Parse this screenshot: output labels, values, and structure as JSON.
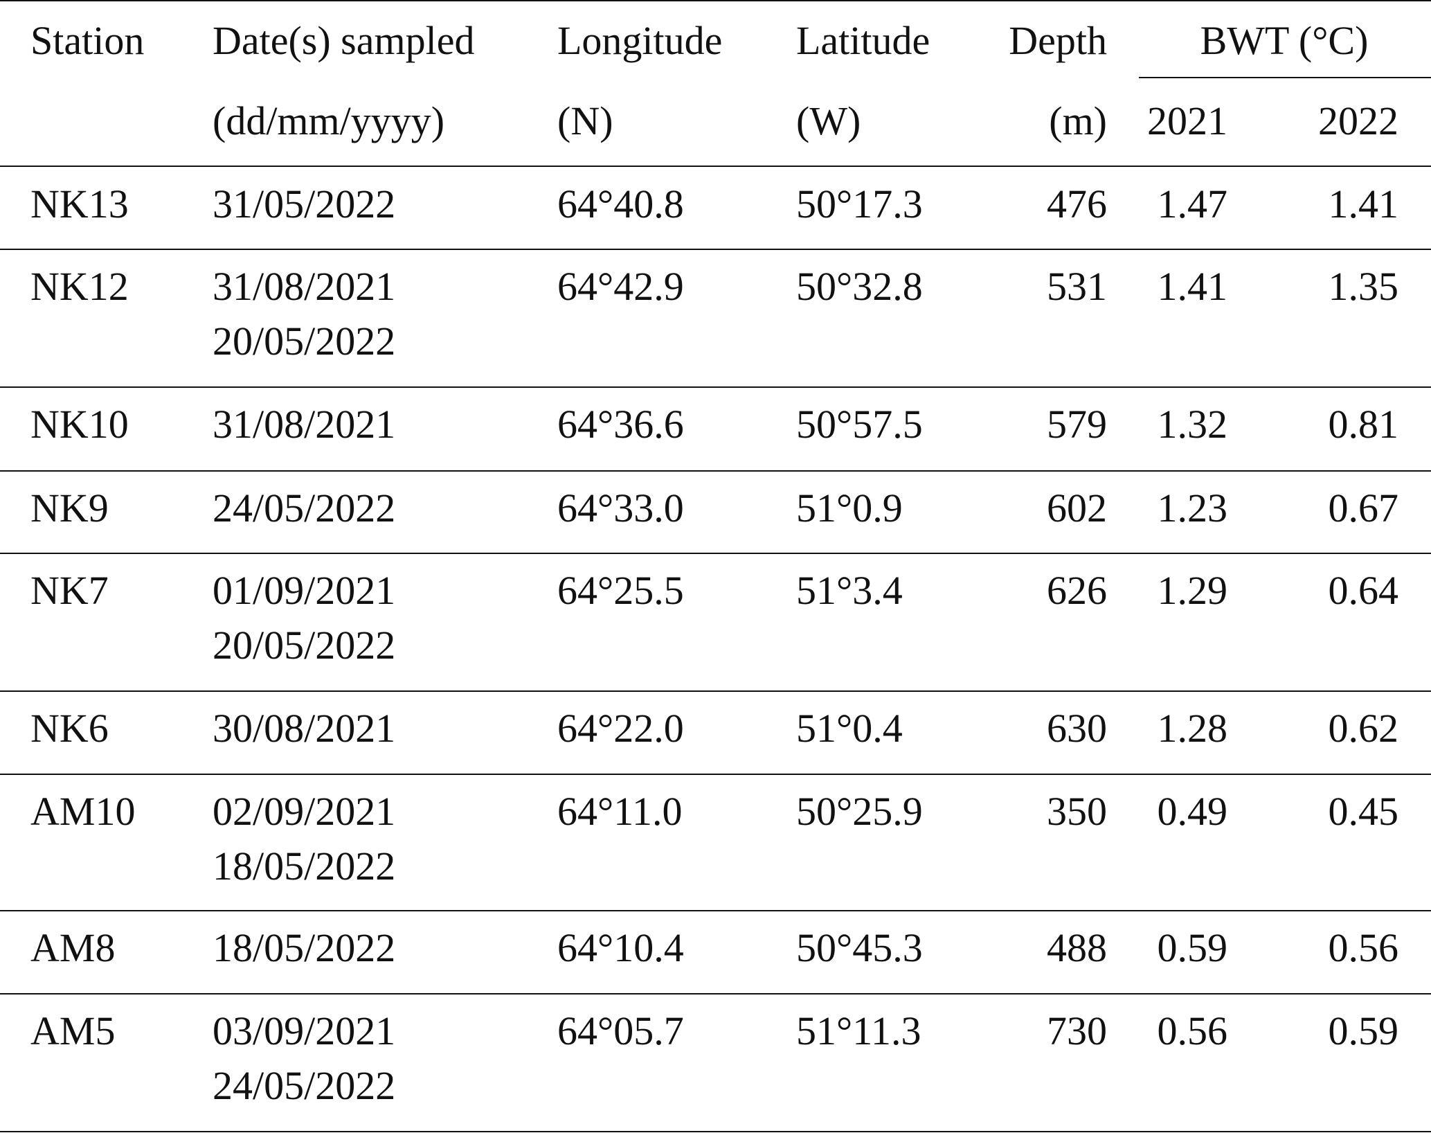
{
  "table": {
    "header": [
      [
        "Station",
        "Date(s) sampled",
        "Longitude",
        "Latitude",
        "Depth",
        "BWT (°C)"
      ],
      [
        "(dd/mm/yyyy)",
        "(N)",
        "(W)",
        "(m)",
        "2021",
        "2022"
      ]
    ],
    "rows": [
      [
        "NK13",
        [
          "31/05/2022"
        ],
        "64°40.8",
        "50°17.3",
        "476",
        "1.47",
        "1.41"
      ],
      [
        "NK12",
        [
          "31/08/2021",
          "20/05/2022"
        ],
        "64°42.9",
        "50°32.8",
        "531",
        "1.41",
        "1.35"
      ],
      [
        "NK10",
        [
          "31/08/2021"
        ],
        "64°36.6",
        "50°57.5",
        "579",
        "1.32",
        "0.81"
      ],
      [
        "NK9",
        [
          "24/05/2022"
        ],
        "64°33.0",
        "51°0.9",
        "602",
        "1.23",
        "0.67"
      ],
      [
        "NK7",
        [
          "01/09/2021",
          "20/05/2022"
        ],
        "64°25.5",
        "51°3.4",
        "626",
        "1.29",
        "0.64"
      ],
      [
        "NK6",
        [
          "30/08/2021"
        ],
        "64°22.0",
        "51°0.4",
        "630",
        "1.28",
        "0.62"
      ],
      [
        "AM10",
        [
          "02/09/2021",
          "18/05/2022"
        ],
        "64°11.0",
        "50°25.9",
        "350",
        "0.49",
        "0.45"
      ],
      [
        "AM8",
        [
          "18/05/2022"
        ],
        "64°10.4",
        "50°45.3",
        "488",
        "0.59",
        "0.56"
      ],
      [
        "AM5",
        [
          "03/09/2021",
          "24/05/2022"
        ],
        "64°05.7",
        "51°11.3",
        "730",
        "0.56",
        "0.59"
      ]
    ]
  }
}
